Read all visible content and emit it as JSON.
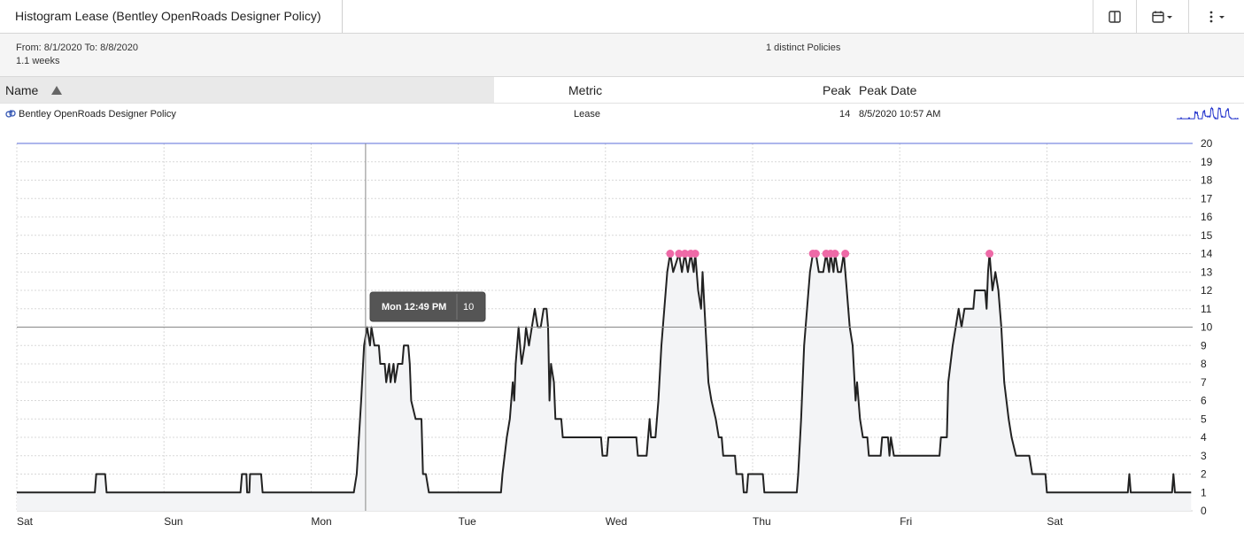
{
  "header": {
    "title": "Histogram Lease (Bentley OpenRoads Designer Policy)",
    "icons": [
      "columns-icon",
      "calendar-icon",
      "more-vertical-icon"
    ]
  },
  "summary": {
    "range": "From: 8/1/2020 To: 8/8/2020",
    "duration": "1.1 weeks",
    "distinct": "1 distinct Policies"
  },
  "table": {
    "columns": [
      "Name",
      "Metric",
      "Peak",
      "Peak Date"
    ],
    "sort": "ascending",
    "rows": [
      {
        "name": "Bentley OpenRoads Designer Policy",
        "metric": "Lease",
        "peak": "14",
        "peak_date": "8/5/2020 10:57 AM"
      }
    ]
  },
  "tooltip": {
    "label": "Mon 12:49 PM",
    "value": "10"
  },
  "colors": {
    "line": "#222222",
    "area": "#f3f4f6",
    "peak_marker": "#ee6aa7",
    "max_line": "#5b6cd8",
    "spark": "#2233cc"
  },
  "chart_data": {
    "type": "area",
    "x_unit": "days since Sat",
    "x_ticks": [
      "Sat",
      "Sun",
      "Mon",
      "Tue",
      "Wed",
      "Thu",
      "Fri",
      "Sat"
    ],
    "ylim": [
      0,
      20
    ],
    "y_ticks": [
      0,
      1,
      2,
      3,
      4,
      5,
      6,
      7,
      8,
      9,
      10,
      11,
      12,
      13,
      14,
      15,
      16,
      17,
      18,
      19,
      20
    ],
    "max_line": 20,
    "crosshair": {
      "x": 2.37,
      "y": 10
    },
    "peak_points": [
      [
        4.44,
        14
      ],
      [
        4.5,
        14
      ],
      [
        4.54,
        14
      ],
      [
        4.58,
        14
      ],
      [
        4.61,
        14
      ],
      [
        5.41,
        14
      ],
      [
        5.43,
        14
      ],
      [
        5.5,
        14
      ],
      [
        5.53,
        14
      ],
      [
        5.56,
        14
      ],
      [
        5.63,
        14
      ],
      [
        6.61,
        14
      ]
    ],
    "series": [
      {
        "values": [
          [
            0,
            1
          ],
          [
            0.53,
            1
          ],
          [
            0.54,
            2
          ],
          [
            0.6,
            2
          ],
          [
            0.61,
            1
          ],
          [
            1.52,
            1
          ],
          [
            1.53,
            2
          ],
          [
            1.56,
            2
          ],
          [
            1.565,
            1
          ],
          [
            1.58,
            1
          ],
          [
            1.585,
            2
          ],
          [
            1.66,
            2
          ],
          [
            1.67,
            1
          ],
          [
            2.29,
            1
          ],
          [
            2.31,
            2
          ],
          [
            2.34,
            6
          ],
          [
            2.36,
            9
          ],
          [
            2.38,
            10
          ],
          [
            2.4,
            9
          ],
          [
            2.41,
            10
          ],
          [
            2.43,
            9
          ],
          [
            2.46,
            9
          ],
          [
            2.47,
            8
          ],
          [
            2.5,
            8
          ],
          [
            2.51,
            7
          ],
          [
            2.53,
            8
          ],
          [
            2.54,
            7
          ],
          [
            2.56,
            8
          ],
          [
            2.57,
            7
          ],
          [
            2.59,
            8
          ],
          [
            2.62,
            8
          ],
          [
            2.63,
            9
          ],
          [
            2.66,
            9
          ],
          [
            2.67,
            8
          ],
          [
            2.68,
            6
          ],
          [
            2.71,
            5
          ],
          [
            2.75,
            5
          ],
          [
            2.76,
            2
          ],
          [
            2.78,
            2
          ],
          [
            2.8,
            1
          ],
          [
            3.29,
            1
          ],
          [
            3.3,
            2
          ],
          [
            3.33,
            4
          ],
          [
            3.35,
            5
          ],
          [
            3.37,
            7
          ],
          [
            3.38,
            6
          ],
          [
            3.39,
            8
          ],
          [
            3.41,
            10
          ],
          [
            3.43,
            8
          ],
          [
            3.45,
            9
          ],
          [
            3.46,
            10
          ],
          [
            3.48,
            9
          ],
          [
            3.5,
            10
          ],
          [
            3.52,
            11
          ],
          [
            3.54,
            10
          ],
          [
            3.56,
            10
          ],
          [
            3.58,
            11
          ],
          [
            3.6,
            11
          ],
          [
            3.61,
            10
          ],
          [
            3.62,
            6
          ],
          [
            3.63,
            8
          ],
          [
            3.65,
            7
          ],
          [
            3.66,
            5
          ],
          [
            3.7,
            5
          ],
          [
            3.71,
            4
          ],
          [
            3.97,
            4
          ],
          [
            3.98,
            3
          ],
          [
            4.01,
            3
          ],
          [
            4.02,
            4
          ],
          [
            4.21,
            4
          ],
          [
            4.22,
            3
          ],
          [
            4.28,
            3
          ],
          [
            4.29,
            4
          ],
          [
            4.3,
            5
          ],
          [
            4.31,
            4
          ],
          [
            4.34,
            4
          ],
          [
            4.36,
            6
          ],
          [
            4.38,
            9
          ],
          [
            4.4,
            11
          ],
          [
            4.42,
            13
          ],
          [
            4.44,
            14
          ],
          [
            4.46,
            13
          ],
          [
            4.5,
            14
          ],
          [
            4.52,
            13
          ],
          [
            4.54,
            14
          ],
          [
            4.56,
            13
          ],
          [
            4.58,
            14
          ],
          [
            4.6,
            13
          ],
          [
            4.61,
            14
          ],
          [
            4.63,
            12
          ],
          [
            4.65,
            11
          ],
          [
            4.66,
            13
          ],
          [
            4.68,
            10
          ],
          [
            4.7,
            7
          ],
          [
            4.72,
            6
          ],
          [
            4.75,
            5
          ],
          [
            4.77,
            4
          ],
          [
            4.79,
            4
          ],
          [
            4.8,
            3
          ],
          [
            4.88,
            3
          ],
          [
            4.89,
            2
          ],
          [
            4.93,
            2
          ],
          [
            4.94,
            1
          ],
          [
            4.96,
            1
          ],
          [
            4.97,
            2
          ],
          [
            5.07,
            2
          ],
          [
            5.08,
            1
          ],
          [
            5.3,
            1
          ],
          [
            5.31,
            2
          ],
          [
            5.33,
            5
          ],
          [
            5.35,
            9
          ],
          [
            5.37,
            11
          ],
          [
            5.39,
            13
          ],
          [
            5.41,
            14
          ],
          [
            5.43,
            14
          ],
          [
            5.45,
            13
          ],
          [
            5.48,
            13
          ],
          [
            5.5,
            14
          ],
          [
            5.52,
            13
          ],
          [
            5.53,
            14
          ],
          [
            5.55,
            13
          ],
          [
            5.56,
            14
          ],
          [
            5.58,
            13
          ],
          [
            5.6,
            13
          ],
          [
            5.62,
            14
          ],
          [
            5.64,
            12
          ],
          [
            5.66,
            10
          ],
          [
            5.68,
            9
          ],
          [
            5.7,
            6
          ],
          [
            5.71,
            7
          ],
          [
            5.73,
            5
          ],
          [
            5.75,
            4
          ],
          [
            5.78,
            4
          ],
          [
            5.79,
            3
          ],
          [
            5.87,
            3
          ],
          [
            5.88,
            4
          ],
          [
            5.92,
            4
          ],
          [
            5.93,
            3
          ],
          [
            5.94,
            4
          ],
          [
            5.96,
            3
          ],
          [
            6.27,
            3
          ],
          [
            6.28,
            4
          ],
          [
            6.32,
            4
          ],
          [
            6.33,
            7
          ],
          [
            6.36,
            9
          ],
          [
            6.38,
            10
          ],
          [
            6.4,
            11
          ],
          [
            6.42,
            10
          ],
          [
            6.44,
            11
          ],
          [
            6.46,
            11
          ],
          [
            6.5,
            11
          ],
          [
            6.51,
            12
          ],
          [
            6.58,
            12
          ],
          [
            6.59,
            11
          ],
          [
            6.6,
            13
          ],
          [
            6.61,
            14
          ],
          [
            6.63,
            12
          ],
          [
            6.65,
            13
          ],
          [
            6.67,
            12
          ],
          [
            6.69,
            10
          ],
          [
            6.71,
            7
          ],
          [
            6.74,
            5
          ],
          [
            6.76,
            4
          ],
          [
            6.79,
            3
          ],
          [
            6.88,
            3
          ],
          [
            6.9,
            2
          ],
          [
            6.99,
            2
          ],
          [
            7.0,
            1
          ],
          [
            7.55,
            1
          ],
          [
            7.56,
            2
          ],
          [
            7.57,
            1
          ],
          [
            7.85,
            1
          ],
          [
            7.86,
            2
          ],
          [
            7.87,
            1
          ],
          [
            7.98,
            1
          ]
        ]
      }
    ]
  }
}
